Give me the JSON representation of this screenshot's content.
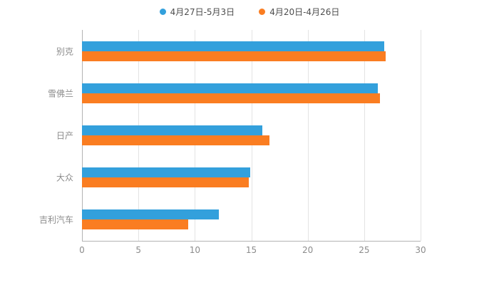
{
  "chart_data": {
    "type": "bar",
    "orientation": "horizontal",
    "title": "",
    "xlabel": "",
    "ylabel": "",
    "categories": [
      "别克",
      "雪佛兰",
      "日产",
      "大众",
      "吉利汽车"
    ],
    "series": [
      {
        "name": "4月27日-5月3日",
        "color": "#33A0DC",
        "values": [
          26.8,
          26.2,
          16.0,
          14.9,
          12.1
        ]
      },
      {
        "name": "4月20日-4月26日",
        "color": "#FA7D21",
        "values": [
          26.9,
          26.4,
          16.6,
          14.8,
          9.4
        ]
      }
    ],
    "xlim": [
      0,
      30
    ],
    "xticks": [
      0,
      5,
      10,
      15,
      20,
      25,
      30
    ],
    "grid": true,
    "legend_position": "top",
    "background": "#ffffff"
  },
  "colors": {
    "gridline": "#e3e3e3",
    "axis_line": "#b3b3b3",
    "tick_label": "#8c8c8c",
    "category_label": "#8c8c8c",
    "legend_text": "#4d4d4d"
  }
}
